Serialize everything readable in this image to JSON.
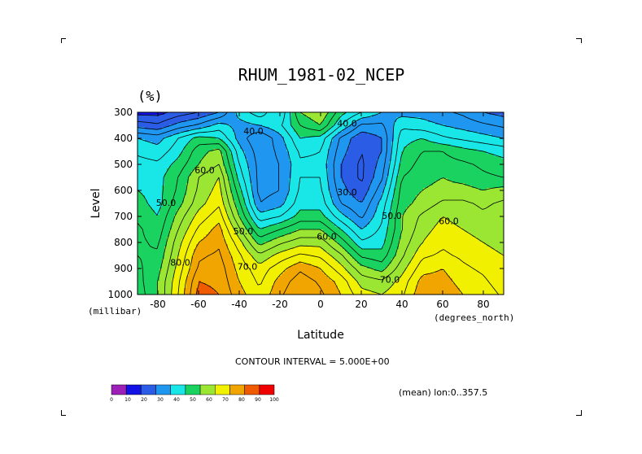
{
  "chart_data": {
    "type": "heatmap",
    "title": "RHUM_1981-02_NCEP",
    "units_label": "(%)",
    "xlabel": "Latitude",
    "ylabel": "Level",
    "x_units": "(degrees_north)",
    "y_units": "(millibar)",
    "xlim": [
      -90,
      90
    ],
    "ylim": [
      1000,
      300
    ],
    "x_ticks": [
      -80,
      -60,
      -40,
      -20,
      0,
      20,
      40,
      60,
      80
    ],
    "x_tick_labels": [
      "-80",
      "-60",
      "-40",
      "-20",
      "0",
      "20",
      "40",
      "60",
      "80"
    ],
    "y_ticks": [
      300,
      400,
      500,
      600,
      700,
      800,
      900,
      1000
    ],
    "y_tick_labels": [
      "300",
      "400",
      "500",
      "600",
      "700",
      "800",
      "900",
      "1000"
    ],
    "contour_interval_text": "CONTOUR INTERVAL = 5.000E+00",
    "footer_text": "(mean) lon:0..357.5",
    "colorbar": {
      "levels": [
        0,
        10,
        20,
        30,
        40,
        50,
        60,
        70,
        80,
        90,
        100
      ],
      "labels": [
        "0",
        "10",
        "20",
        "30",
        "40",
        "50",
        "60",
        "70",
        "80",
        "90",
        "100"
      ],
      "colors": [
        "#9c1fb8",
        "#1212e6",
        "#2a5ce6",
        "#1f97f0",
        "#19e6e6",
        "#19d25f",
        "#9be632",
        "#f0f000",
        "#f0a500",
        "#f05a00",
        "#f00000"
      ]
    },
    "contour_labels": [
      {
        "text": "40.0",
        "lat": -33,
        "lev": 375
      },
      {
        "text": "40.0",
        "lat": 13,
        "lev": 345
      },
      {
        "text": "60.0",
        "lat": -57,
        "lev": 525
      },
      {
        "text": "50.0",
        "lat": -76,
        "lev": 650
      },
      {
        "text": "30.0",
        "lat": 13,
        "lev": 610
      },
      {
        "text": "50.0",
        "lat": 35,
        "lev": 700
      },
      {
        "text": "60.0",
        "lat": 63,
        "lev": 720
      },
      {
        "text": "50.0",
        "lat": -38,
        "lev": 760
      },
      {
        "text": "60.0",
        "lat": 3,
        "lev": 780
      },
      {
        "text": "80.0",
        "lat": -69,
        "lev": 880
      },
      {
        "text": "70.0",
        "lat": -36,
        "lev": 895
      },
      {
        "text": "70.0",
        "lat": 34,
        "lev": 945
      }
    ],
    "z_rows_lev": [
      300,
      350,
      400,
      450,
      500,
      550,
      600,
      650,
      700,
      750,
      800,
      850,
      900,
      950,
      1000
    ],
    "z_cols_lat": [
      -90,
      -80,
      -70,
      -60,
      -50,
      -40,
      -30,
      -20,
      -10,
      0,
      10,
      20,
      30,
      40,
      50,
      60,
      70,
      80,
      90
    ],
    "z": [
      [
        18,
        18,
        22,
        25,
        30,
        42,
        48,
        40,
        60,
        65,
        52,
        45,
        40,
        38,
        38,
        36,
        34,
        30,
        28
      ],
      [
        28,
        26,
        32,
        36,
        42,
        38,
        40,
        44,
        55,
        60,
        45,
        34,
        34,
        44,
        42,
        40,
        38,
        36,
        34
      ],
      [
        40,
        38,
        45,
        52,
        50,
        38,
        30,
        38,
        50,
        48,
        34,
        26,
        30,
        48,
        50,
        46,
        44,
        42,
        40
      ],
      [
        44,
        42,
        48,
        58,
        62,
        42,
        32,
        36,
        46,
        45,
        32,
        25,
        30,
        50,
        55,
        55,
        52,
        50,
        48
      ],
      [
        47,
        46,
        52,
        60,
        65,
        45,
        33,
        35,
        44,
        44,
        30,
        24,
        32,
        52,
        57,
        57,
        56,
        54,
        52
      ],
      [
        48,
        48,
        55,
        65,
        70,
        48,
        33,
        35,
        45,
        45,
        30,
        24,
        34,
        55,
        58,
        60,
        58,
        56,
        55
      ],
      [
        50,
        48,
        56,
        66,
        72,
        52,
        33,
        35,
        46,
        46,
        32,
        26,
        38,
        57,
        60,
        62,
        62,
        60,
        62
      ],
      [
        52,
        48,
        58,
        68,
        74,
        56,
        35,
        38,
        48,
        48,
        35,
        30,
        42,
        58,
        62,
        66,
        66,
        64,
        66
      ],
      [
        54,
        50,
        62,
        72,
        78,
        60,
        42,
        45,
        52,
        52,
        42,
        34,
        44,
        60,
        66,
        70,
        68,
        66,
        68
      ],
      [
        56,
        52,
        65,
        76,
        82,
        66,
        50,
        55,
        60,
        60,
        50,
        40,
        46,
        60,
        68,
        72,
        70,
        68,
        68
      ],
      [
        56,
        54,
        68,
        80,
        84,
        72,
        58,
        64,
        68,
        68,
        58,
        46,
        48,
        62,
        70,
        74,
        72,
        70,
        68
      ],
      [
        55,
        56,
        70,
        84,
        86,
        76,
        66,
        72,
        76,
        74,
        66,
        54,
        52,
        64,
        74,
        76,
        74,
        72,
        70
      ],
      [
        54,
        58,
        72,
        86,
        88,
        78,
        72,
        78,
        84,
        80,
        72,
        62,
        58,
        68,
        78,
        80,
        76,
        74,
        70
      ],
      [
        53,
        60,
        74,
        90,
        89,
        80,
        74,
        82,
        88,
        84,
        78,
        68,
        66,
        72,
        82,
        82,
        78,
        76,
        72
      ],
      [
        52,
        60,
        75,
        92,
        90,
        82,
        76,
        84,
        90,
        86,
        80,
        72,
        70,
        74,
        84,
        84,
        80,
        78,
        74
      ]
    ]
  }
}
